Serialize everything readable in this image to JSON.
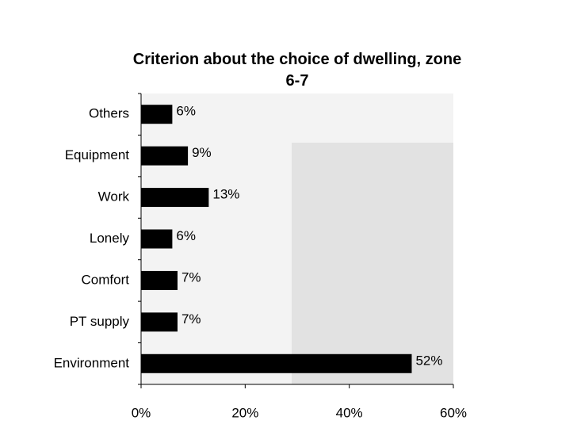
{
  "chart_data": {
    "type": "bar",
    "orientation": "horizontal",
    "title": "Criterion about the choice of dwelling, zone 6-7",
    "categories": [
      "Others",
      "Equipment",
      "Work",
      "Lonely",
      "Comfort",
      "PT supply",
      "Environment"
    ],
    "values": [
      6,
      9,
      13,
      6,
      7,
      7,
      52
    ],
    "value_labels": [
      "6%",
      "9%",
      "13%",
      "6%",
      "7%",
      "7%",
      "52%"
    ],
    "color": "#000000",
    "xlim": [
      0,
      60
    ],
    "xticks": [
      {
        "value": 0,
        "label": "0%"
      },
      {
        "value": 20,
        "label": "20%"
      },
      {
        "value": 40,
        "label": "40%"
      },
      {
        "value": 60,
        "label": "60%"
      }
    ],
    "grid": false
  }
}
